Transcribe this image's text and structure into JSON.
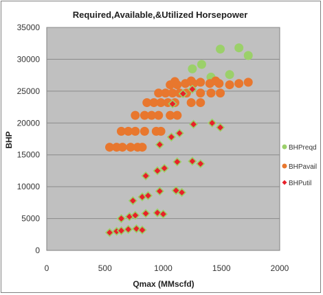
{
  "chart_data": {
    "type": "scatter",
    "title": "Required,Available,&Utilized Horsepower",
    "xlabel": "Qmax (MMscfd)",
    "ylabel": "BHP",
    "xlim": [
      0,
      2000
    ],
    "ylim": [
      0,
      35000
    ],
    "xticks": [
      0,
      500,
      1000,
      1500,
      2000
    ],
    "yticks": [
      0,
      5000,
      10000,
      15000,
      20000,
      25000,
      30000,
      35000
    ],
    "grid": "horizontal",
    "legend_position": "right",
    "colors": {
      "BHPreqd": "#9bd06a",
      "BHPavail": "#e8772e",
      "BHPutil": "#e8202a",
      "plot_bg": "#c0c0c0"
    },
    "series": [
      {
        "name": "BHPreqd",
        "marker": "circle",
        "points": [
          [
            1250,
            28500
          ],
          [
            1330,
            29200
          ],
          [
            1410,
            27200
          ],
          [
            1490,
            31600
          ],
          [
            1570,
            27600
          ],
          [
            1650,
            31800
          ],
          [
            1730,
            30600
          ]
        ]
      },
      {
        "name": "BHPavail",
        "marker": "circle",
        "points": [
          [
            540,
            16200
          ],
          [
            600,
            16200
          ],
          [
            650,
            16200
          ],
          [
            720,
            16200
          ],
          [
            780,
            16200
          ],
          [
            820,
            16200
          ],
          [
            640,
            18700
          ],
          [
            700,
            18700
          ],
          [
            760,
            18700
          ],
          [
            840,
            18700
          ],
          [
            940,
            18700
          ],
          [
            980,
            18700
          ],
          [
            760,
            21200
          ],
          [
            840,
            21200
          ],
          [
            900,
            21200
          ],
          [
            960,
            21200
          ],
          [
            1060,
            21200
          ],
          [
            1120,
            21200
          ],
          [
            860,
            23200
          ],
          [
            920,
            23200
          ],
          [
            980,
            23200
          ],
          [
            1040,
            23200
          ],
          [
            1100,
            23200
          ],
          [
            1240,
            23200
          ],
          [
            1320,
            23200
          ],
          [
            960,
            24700
          ],
          [
            1020,
            24700
          ],
          [
            1080,
            24700
          ],
          [
            1140,
            24700
          ],
          [
            1200,
            24700
          ],
          [
            1320,
            24700
          ],
          [
            1410,
            24700
          ],
          [
            1490,
            24700
          ],
          [
            1060,
            26000
          ],
          [
            1120,
            26000
          ],
          [
            1190,
            26200
          ],
          [
            1260,
            26200
          ],
          [
            1320,
            26400
          ],
          [
            1400,
            26200
          ],
          [
            1480,
            26200
          ],
          [
            1570,
            26000
          ],
          [
            1650,
            26200
          ],
          [
            1730,
            26400
          ],
          [
            1100,
            26500
          ],
          [
            1240,
            26600
          ],
          [
            1450,
            26600
          ]
        ]
      },
      {
        "name": "BHPutil",
        "marker": "diamond",
        "points": [
          [
            540,
            2800
          ],
          [
            600,
            3000
          ],
          [
            640,
            3100
          ],
          [
            700,
            3300
          ],
          [
            770,
            3400
          ],
          [
            820,
            3200
          ],
          [
            640,
            5000
          ],
          [
            710,
            5300
          ],
          [
            760,
            5500
          ],
          [
            850,
            5800
          ],
          [
            950,
            5900
          ],
          [
            1000,
            5700
          ],
          [
            740,
            7800
          ],
          [
            820,
            8400
          ],
          [
            870,
            8600
          ],
          [
            970,
            9300
          ],
          [
            1110,
            9400
          ],
          [
            1160,
            9100
          ],
          [
            850,
            11700
          ],
          [
            950,
            12500
          ],
          [
            1010,
            12900
          ],
          [
            1120,
            13900
          ],
          [
            1250,
            14000
          ],
          [
            1320,
            13600
          ],
          [
            970,
            16600
          ],
          [
            1070,
            17800
          ],
          [
            1140,
            18400
          ],
          [
            1260,
            19800
          ],
          [
            1420,
            20000
          ],
          [
            1490,
            19300
          ],
          [
            1080,
            23000
          ],
          [
            1170,
            24600
          ],
          [
            1250,
            25300
          ]
        ]
      }
    ]
  }
}
